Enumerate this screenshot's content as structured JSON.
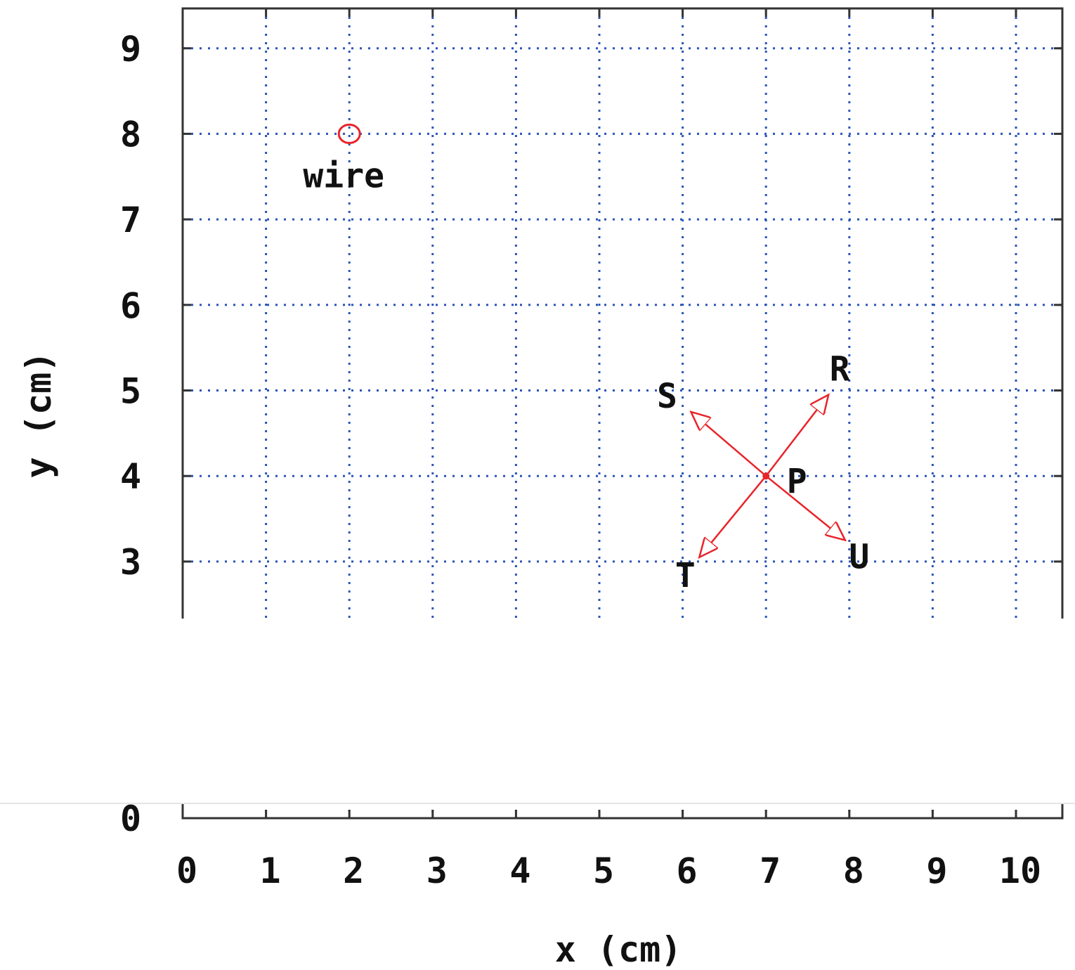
{
  "chart_data": {
    "type": "scatter",
    "xlabel": "x (cm)",
    "ylabel": "y (cm)",
    "xlim": [
      0,
      10.5
    ],
    "ylim": [
      0,
      9.5
    ],
    "x_ticks": [
      0,
      1,
      2,
      3,
      4,
      5,
      6,
      7,
      8,
      9,
      10
    ],
    "y_ticks": [
      0,
      3,
      4,
      5,
      6,
      7,
      8,
      9
    ],
    "grid": true,
    "grid_color": "#2a55b8",
    "accent_color": "#e8242a",
    "points": [
      {
        "label": "wire",
        "x": 2,
        "y": 8,
        "marker": "circle"
      },
      {
        "label": "P",
        "x": 7,
        "y": 4,
        "marker": "dot"
      }
    ],
    "arrows": [
      {
        "label": "R",
        "from": [
          7,
          4
        ],
        "to": [
          7.75,
          4.95
        ]
      },
      {
        "label": "S",
        "from": [
          7,
          4
        ],
        "to": [
          6.1,
          4.75
        ]
      },
      {
        "label": "T",
        "from": [
          7,
          4
        ],
        "to": [
          6.2,
          3.05
        ]
      },
      {
        "label": "U",
        "from": [
          7,
          4
        ],
        "to": [
          7.95,
          3.25
        ]
      }
    ]
  }
}
